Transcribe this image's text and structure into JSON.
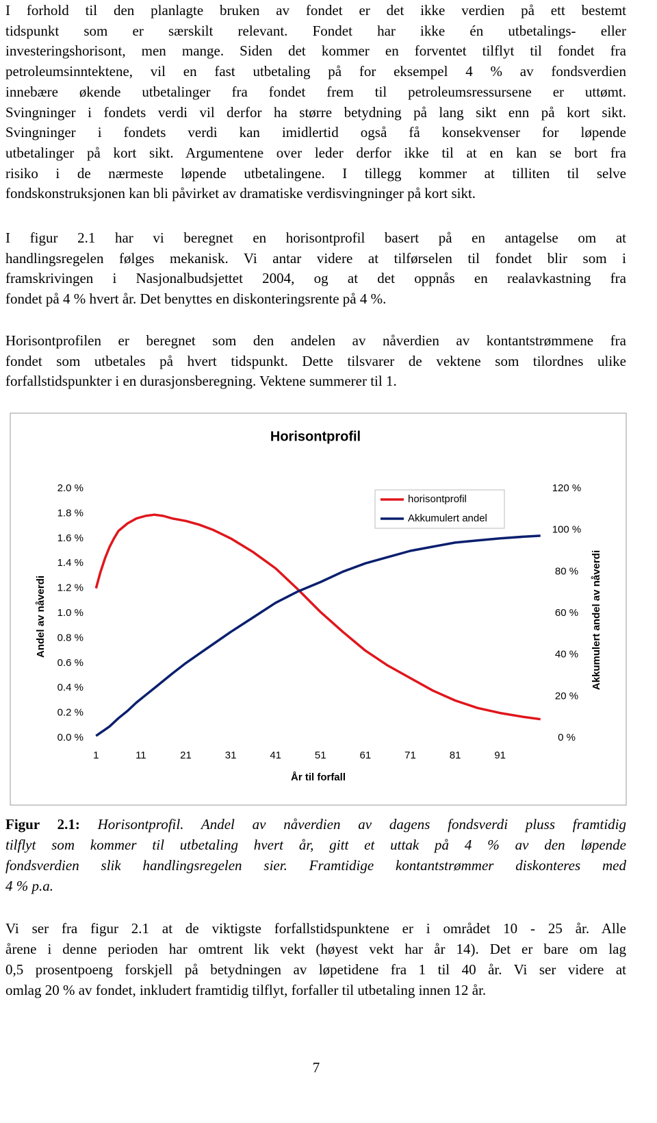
{
  "paragraphs": [
    [
      "I forhold til den planlagte bruken av fondet er det ikke verdien på ett bestemt",
      "tidspunkt som er særskilt relevant. Fondet har ikke én utbetalings- eller",
      "investeringshorisont, men mange. Siden det kommer en forventet tilflyt til fondet fra",
      "petroleumsinntektene, vil en fast utbetaling på for eksempel 4 % av fondsverdien",
      "innebære økende utbetalinger fra fondet frem til petroleumsressursene er uttømt.",
      "Svingninger i fondets verdi vil derfor ha større betydning på lang sikt enn på kort sikt.",
      "Svingninger i fondets verdi kan imidlertid også få konsekvenser for løpende",
      "utbetalinger på kort sikt. Argumentene over leder derfor ikke til at en kan se bort fra",
      "risiko i de nærmeste løpende utbetalingene. I tillegg kommer at tilliten til selve",
      "fondskonstruksjonen kan bli påvirket av dramatiske verdisvingninger på kort sikt."
    ],
    [
      "I figur 2.1 har vi beregnet en horisontprofil basert på en antagelse om at",
      "handlingsregelen følges mekanisk. Vi antar videre at tilførselen til fondet blir som i",
      "framskrivingen i Nasjonalbudsjettet 2004, og at det oppnås en realavkastning fra",
      "fondet på 4 % hvert år. Det benyttes en diskonteringsrente på 4 %."
    ],
    [
      "Horisontprofilen er beregnet som den andelen av nåverdien av kontantstrømmene fra",
      "fondet som utbetales på hvert tidspunkt. Dette tilsvarer de vektene som tilordnes ulike",
      "forfallstidspunkter i en durasjonsberegning. Vektene summerer til 1."
    ]
  ],
  "caption": {
    "label": "Figur 2.1:",
    "lines": [
      " Horisontprofil. Andel av nåverdien av dagens fondsverdi pluss framtidig",
      "tilflyt som kommer til utbetaling hvert år, gitt et uttak på 4 % av den løpende",
      "fondsverdien slik handlingsregelen sier. Framtidige kontantstrømmer diskonteres med",
      "4 % p.a."
    ]
  },
  "closing": [
    "Vi ser fra figur 2.1 at de viktigste forfallstidspunktene er i området 10 - 25 år. Alle",
    "årene i denne perioden har omtrent lik vekt (høyest vekt har år 14). Det er bare om lag",
    "0,5 prosentpoeng forskjell på betydningen av løpetidene fra 1 til 40 år. Vi ser videre at",
    "omlag 20 % av fondet, inkludert framtidig tilflyt, forfaller til utbetaling innen 12 år."
  ],
  "page_number": "7",
  "chart_data": {
    "type": "line",
    "title": "Horisontprofil",
    "x_label": "År til forfall",
    "y_label": "Andel av nåverdi",
    "y2_label": "Akkumulert andel av nåverdi",
    "x": [
      1,
      2,
      3,
      4,
      5,
      6,
      8,
      10,
      12,
      14,
      16,
      18,
      21,
      24,
      27,
      31,
      36,
      41,
      46,
      51,
      56,
      61,
      66,
      71,
      76,
      81,
      86,
      91,
      96,
      100
    ],
    "series": [
      {
        "name": "horisontprofil",
        "color": "#e0161c",
        "axis": "y",
        "values": [
          1.2,
          1.33,
          1.44,
          1.53,
          1.6,
          1.66,
          1.72,
          1.76,
          1.78,
          1.79,
          1.78,
          1.76,
          1.74,
          1.71,
          1.67,
          1.6,
          1.49,
          1.36,
          1.19,
          1.01,
          0.85,
          0.7,
          0.58,
          0.48,
          0.38,
          0.3,
          0.24,
          0.2,
          0.17,
          0.15
        ]
      },
      {
        "name": "Akkumulert andel",
        "color": "#0a1f6e",
        "axis": "y2",
        "values": [
          1,
          2.5,
          4,
          5.5,
          7.5,
          9.5,
          13,
          17,
          20.5,
          24,
          27.5,
          31,
          36,
          40.5,
          45,
          51,
          58,
          65,
          70.5,
          75,
          80,
          84,
          87,
          90,
          92,
          94,
          95,
          96,
          96.8,
          97.3
        ]
      }
    ],
    "xlim": [
      0.5,
      100.5
    ],
    "xticks": [
      1,
      11,
      21,
      31,
      41,
      51,
      61,
      71,
      81,
      91
    ],
    "ylim": [
      0,
      2
    ],
    "yticks": [
      {
        "value": 0,
        "label": "0.0 %"
      },
      {
        "value": 0.2,
        "label": "0.2 %"
      },
      {
        "value": 0.4,
        "label": "0.4 %"
      },
      {
        "value": 0.6,
        "label": "0.6 %"
      },
      {
        "value": 0.8,
        "label": "0.8 %"
      },
      {
        "value": 1.0,
        "label": "1.0 %"
      },
      {
        "value": 1.2,
        "label": "1.2 %"
      },
      {
        "value": 1.4,
        "label": "1.4 %"
      },
      {
        "value": 1.6,
        "label": "1.6 %"
      },
      {
        "value": 1.8,
        "label": "1.8 %"
      },
      {
        "value": 2.0,
        "label": "2.0 %"
      }
    ],
    "y2lim": [
      0,
      120
    ],
    "y2ticks": [
      {
        "value": 0,
        "label": "0 %"
      },
      {
        "value": 20,
        "label": "20 %"
      },
      {
        "value": 40,
        "label": "40 %"
      },
      {
        "value": 60,
        "label": "60 %"
      },
      {
        "value": 80,
        "label": "80 %"
      },
      {
        "value": 100,
        "label": "100 %"
      },
      {
        "value": 120,
        "label": "120 %"
      }
    ],
    "grid": false,
    "legend": "top-right"
  }
}
